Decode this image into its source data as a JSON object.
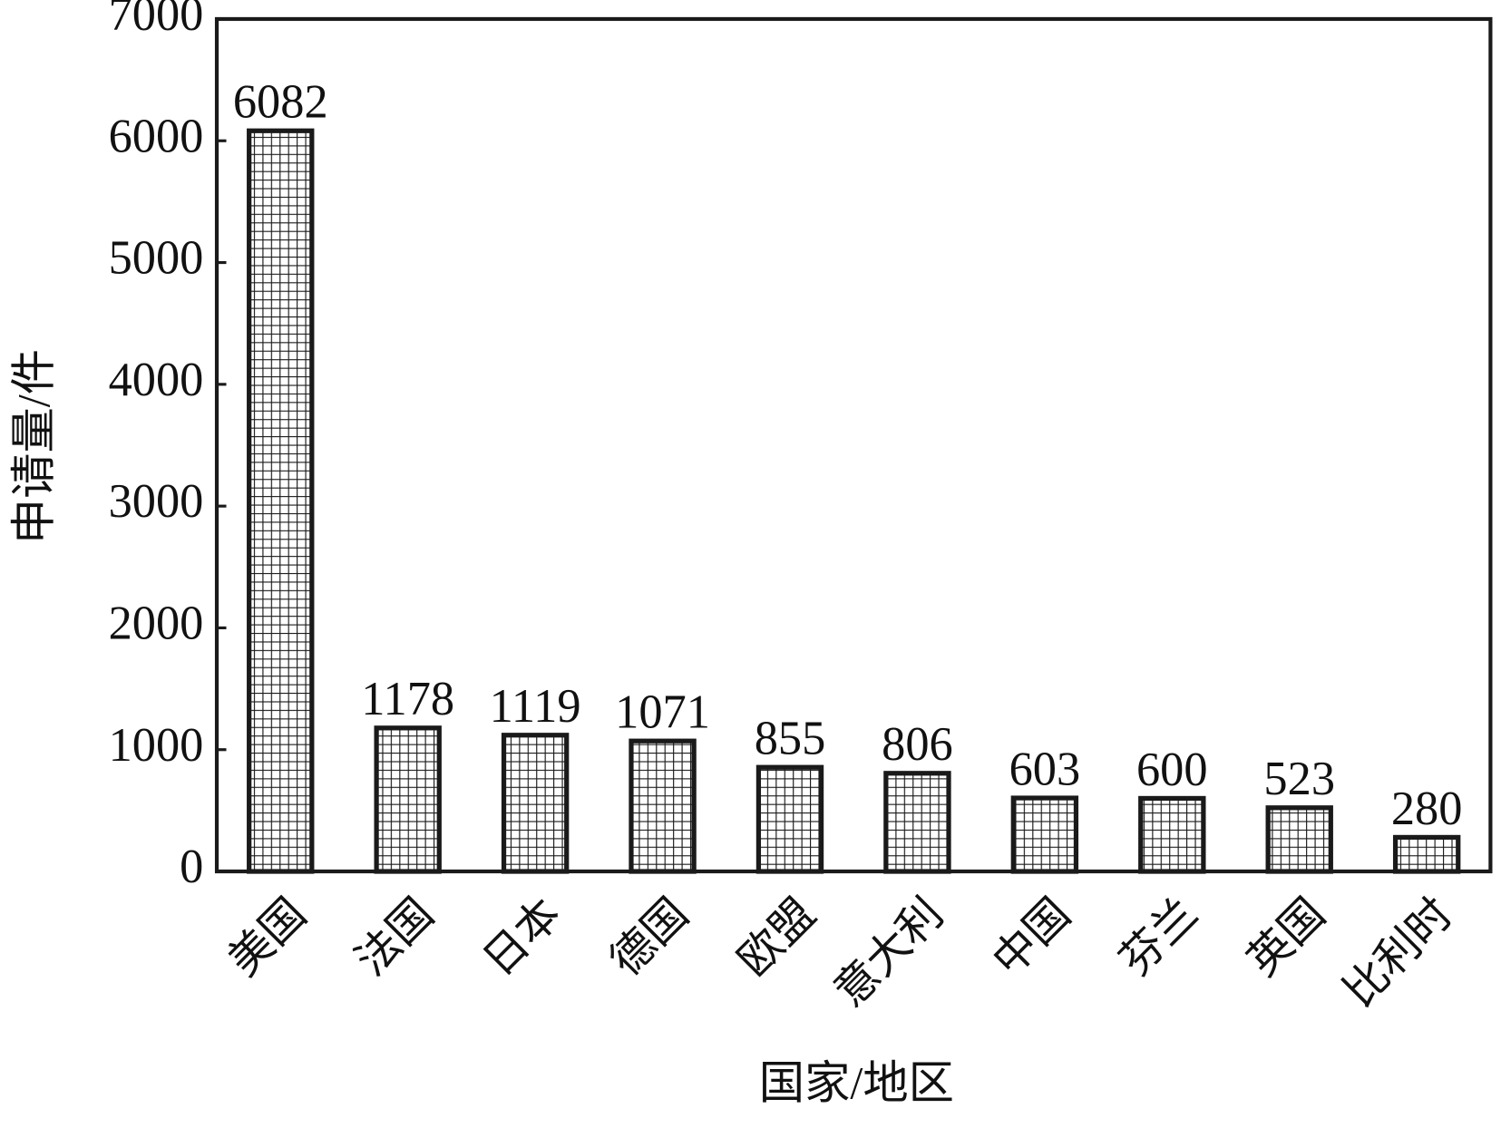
{
  "chart_data": {
    "type": "bar",
    "x_label": "国家/地区",
    "y_label": "申请量/件",
    "categories": [
      "美国",
      "法国",
      "日本",
      "德国",
      "欧盟",
      "意大利",
      "中国",
      "芬兰",
      "英国",
      "比利时"
    ],
    "values": [
      6082,
      1178,
      1119,
      1071,
      855,
      806,
      603,
      600,
      523,
      280
    ],
    "color": "#1a1a1a",
    "ylim": [
      0,
      7000
    ],
    "yticks": [
      0,
      1000,
      2000,
      3000,
      4000,
      5000,
      6000,
      7000
    ]
  }
}
